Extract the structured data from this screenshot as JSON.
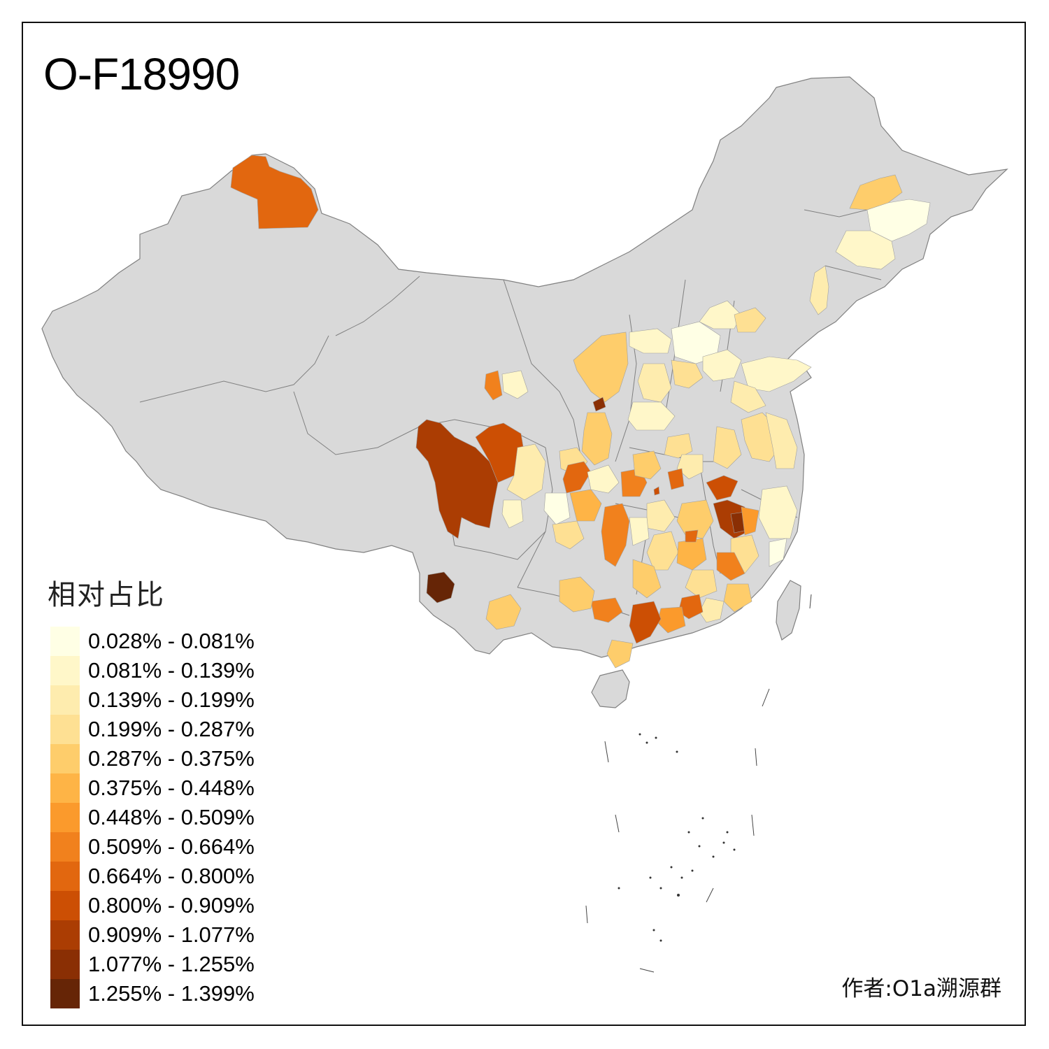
{
  "title": "O-F18990",
  "legend": {
    "title": "相对占比",
    "items": [
      {
        "label": "0.028% - 0.081%",
        "color": "#ffffe5"
      },
      {
        "label": "0.081% - 0.139%",
        "color": "#fff7c9"
      },
      {
        "label": "0.139% - 0.199%",
        "color": "#feecae"
      },
      {
        "label": "0.199% - 0.287%",
        "color": "#fee093"
      },
      {
        "label": "0.287% - 0.375%",
        "color": "#fecd6b"
      },
      {
        "label": "0.375% - 0.448%",
        "color": "#feb446"
      },
      {
        "label": "0.448% - 0.509%",
        "color": "#fb9a2c"
      },
      {
        "label": "0.509% - 0.664%",
        "color": "#f1811d"
      },
      {
        "label": "0.664% - 0.800%",
        "color": "#e2670f"
      },
      {
        "label": "0.800% - 0.909%",
        "color": "#cc4f04"
      },
      {
        "label": "0.909% - 1.077%",
        "color": "#ab3d03"
      },
      {
        "label": "1.077% - 1.255%",
        "color": "#8a2f04"
      },
      {
        "label": "1.255% - 1.399%",
        "color": "#662506"
      }
    ]
  },
  "author": "作者:O1a溯源群",
  "colors": {
    "no_data": "#d9d9d9",
    "border": "#808080"
  }
}
